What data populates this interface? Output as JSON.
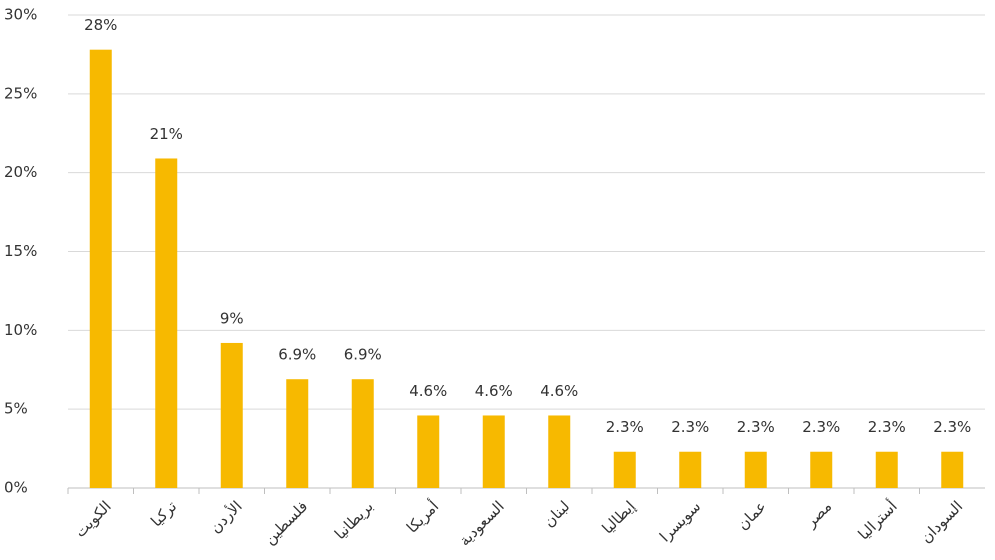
{
  "chart_data": {
    "type": "bar",
    "categories": [
      "الكويت",
      "تركيا",
      "الأردن",
      "فلسطين",
      "بريطانيا",
      "أمريكا",
      "السعودية",
      "لبنان",
      "إيطاليا",
      "سويسرا",
      "عمان",
      "مصر",
      "أستراليا",
      "السودان"
    ],
    "values": [
      27.8,
      20.9,
      9.2,
      6.9,
      6.9,
      4.6,
      4.6,
      4.6,
      2.3,
      2.3,
      2.3,
      2.3,
      2.3,
      2.3
    ],
    "value_labels": [
      "28%",
      "21%",
      "9%",
      "6.9%",
      "6.9%",
      "4.6%",
      "4.6%",
      "4.6%",
      "2.3%",
      "2.3%",
      "2.3%",
      "2.3%",
      "2.3%",
      "2.3%"
    ],
    "color": "#f7b900",
    "ylim": [
      0,
      30
    ],
    "yticks": [
      {
        "value": 0,
        "label": "0%"
      },
      {
        "value": 5,
        "label": "5%"
      },
      {
        "value": 10,
        "label": "10%"
      },
      {
        "value": 15,
        "label": "15%"
      },
      {
        "value": 20,
        "label": "20%"
      },
      {
        "value": 25,
        "label": "25%"
      },
      {
        "value": 30,
        "label": "30%"
      }
    ],
    "grid": true
  }
}
